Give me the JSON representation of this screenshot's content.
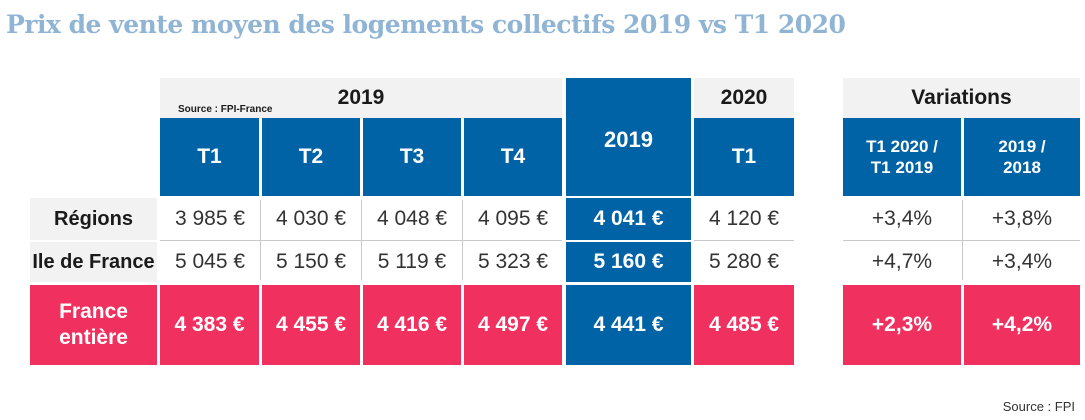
{
  "title": "Prix de vente moyen des logements collectifs 2019 vs T1 2020",
  "source_small": "Source : FPI-France",
  "footer_source": "Source : FPI",
  "headers": {
    "year2019": "2019",
    "year2019_total": "2019",
    "year2020": "2020",
    "variations": "Variations",
    "q1": "T1",
    "q2": "T2",
    "q3": "T3",
    "q4": "T4",
    "q1_2020": "T1",
    "var1": "T1 2020 / T1 2019",
    "var2": "2019 / 2018"
  },
  "rows": [
    {
      "label": "Régions",
      "t1": "3 985 €",
      "t2": "4 030 €",
      "t3": "4 048 €",
      "t4": "4 095 €",
      "y2019": "4 041 €",
      "t1_2020": "4 120 €",
      "var1": "+3,4%",
      "var2": "+3,8%"
    },
    {
      "label": "Ile de France",
      "t1": "5 045 €",
      "t2": "5 150 €",
      "t3": "5 119 €",
      "t4": "5 323 €",
      "y2019": "5 160 €",
      "t1_2020": "5 280 €",
      "var1": "+4,7%",
      "var2": "+3,4%"
    },
    {
      "label": "France entière",
      "t1": "4 383 €",
      "t2": "4 455 €",
      "t3": "4 416 €",
      "t4": "4 497 €",
      "y2019": "4 441 €",
      "t1_2020": "4 485 €",
      "var1": "+2,3%",
      "var2": "+4,2%"
    }
  ],
  "colors": {
    "title": "#8fb4d4",
    "blue": "#0063a6",
    "pink": "#f0305e",
    "grey": "#f2f2f2"
  },
  "chart_data": {
    "type": "table",
    "title": "Prix de vente moyen des logements collectifs 2019 vs T1 2020",
    "columns": [
      "2019 T1",
      "2019 T2",
      "2019 T3",
      "2019 T4",
      "2019",
      "2020 T1",
      "T1 2020 / T1 2019",
      "2019 / 2018"
    ],
    "rows": [
      {
        "label": "Régions",
        "values": [
          "3 985 €",
          "4 030 €",
          "4 048 €",
          "4 095 €",
          "4 041 €",
          "4 120 €",
          "+3,4%",
          "+3,8%"
        ]
      },
      {
        "label": "Ile de France",
        "values": [
          "5 045 €",
          "5 150 €",
          "5 119 €",
          "5 323 €",
          "5 160 €",
          "5 280 €",
          "+4,7%",
          "+3,4%"
        ]
      },
      {
        "label": "France entière",
        "values": [
          "4 383 €",
          "4 455 €",
          "4 416 €",
          "4 497 €",
          "4 441 €",
          "4 485 €",
          "+2,3%",
          "+4,2%"
        ]
      }
    ]
  }
}
